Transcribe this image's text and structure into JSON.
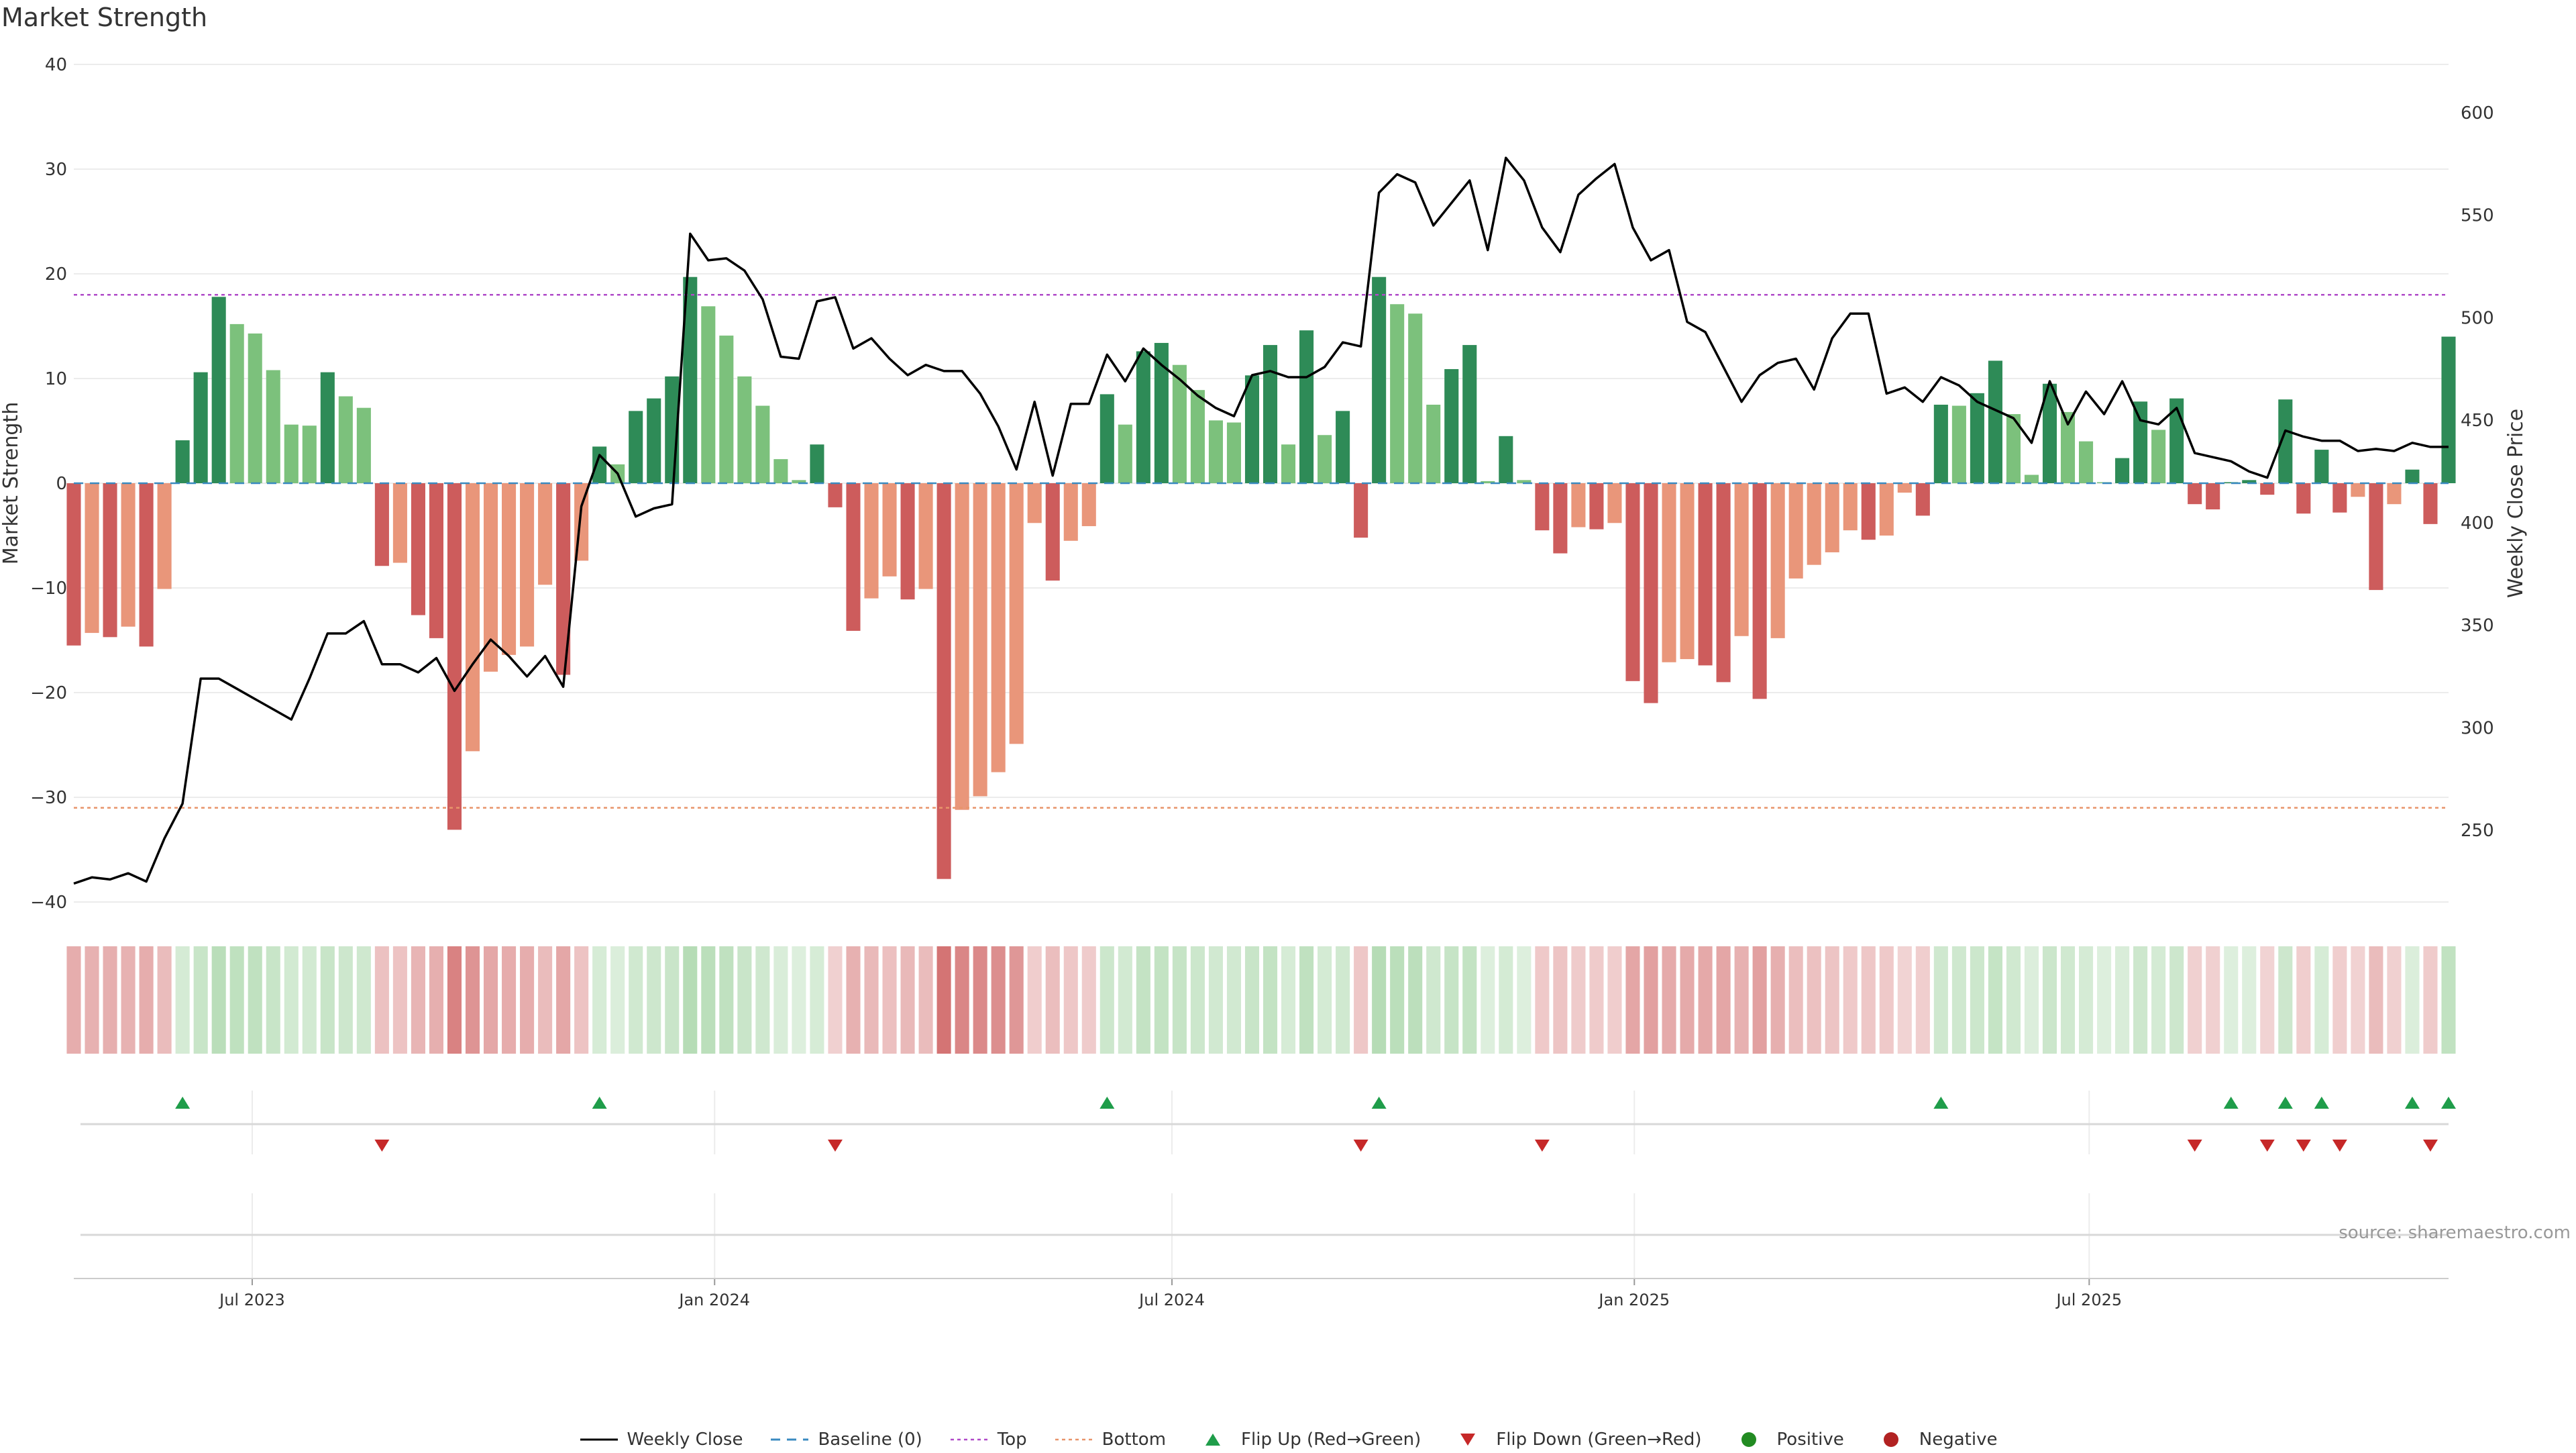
{
  "title": "Market Strength",
  "source": "source: sharemaestro.com",
  "colors": {
    "pos_strong": "#2e8b57",
    "pos_light": "#7cc17c",
    "neg_strong": "#cd5c5c",
    "neg_light": "#e9967a",
    "line": "#000000",
    "top": "#b04ac8",
    "bottom": "#e8946a",
    "baseline": "#3a8ac0",
    "flip_up": "#1f9d4a",
    "flip_down": "#c62828",
    "positive": "#228b22",
    "negative": "#b22222"
  },
  "legend": [
    {
      "key": "line",
      "label": "Weekly Close"
    },
    {
      "key": "baseline",
      "label": "Baseline (0)"
    },
    {
      "key": "top",
      "label": "Top"
    },
    {
      "key": "bottom",
      "label": "Bottom"
    },
    {
      "key": "flip_up",
      "label": "Flip Up (Red→Green)"
    },
    {
      "key": "flip_down",
      "label": "Flip Down (Green→Red)"
    },
    {
      "key": "positive",
      "label": "Positive"
    },
    {
      "key": "negative",
      "label": "Negative"
    }
  ],
  "chart_data": {
    "type": "bar",
    "title": "Market Strength",
    "ylabel": "Market Strength",
    "y2label": "Weekly Close Price",
    "ylim": [
      -40,
      40
    ],
    "y2lim": [
      200,
      620
    ],
    "yticks": [
      -40,
      -30,
      -20,
      -10,
      0,
      10,
      20,
      30,
      40
    ],
    "y2ticks": [
      250,
      300,
      350,
      400,
      450,
      500,
      550,
      600
    ],
    "top_level": 18,
    "bottom_level": -31,
    "x_start": "2023-04-21",
    "x_end": "2025-11-21",
    "xticks": [
      {
        "date": "2023-07-01",
        "label": "Jul 2023"
      },
      {
        "date": "2024-01-01",
        "label": "Jan 2024"
      },
      {
        "date": "2024-07-01",
        "label": "Jul 2024"
      },
      {
        "date": "2025-01-01",
        "label": "Jan 2025"
      },
      {
        "date": "2025-07-01",
        "label": "Jul 2025"
      }
    ],
    "strength": [
      -15.5,
      -14.3,
      -14.7,
      -13.7,
      -15.6,
      -10.1,
      4.1,
      10.6,
      17.8,
      15.2,
      14.3,
      10.8,
      5.6,
      5.5,
      10.6,
      8.3,
      7.2,
      -7.9,
      -7.6,
      -12.6,
      -14.8,
      -33.1,
      -25.6,
      -18.0,
      -16.4,
      -15.6,
      -9.7,
      -18.3,
      -7.4,
      3.5,
      1.8,
      6.9,
      8.1,
      10.2,
      19.7,
      16.9,
      14.1,
      10.2,
      7.4,
      2.3,
      0.3,
      3.7,
      -2.3,
      -14.1,
      -11.0,
      -8.9,
      -11.1,
      -10.1,
      -37.8,
      -31.2,
      -29.9,
      -27.6,
      -24.9,
      -3.8,
      -9.3,
      -5.5,
      -4.1,
      8.5,
      5.6,
      12.6,
      13.4,
      11.3,
      8.9,
      6.0,
      5.8,
      10.3,
      13.2,
      3.7,
      14.6,
      4.6,
      6.9,
      -5.2,
      19.7,
      17.1,
      16.2,
      7.5,
      10.9,
      13.2,
      0.2,
      4.5,
      0.3,
      -4.5,
      -6.7,
      -4.2,
      -4.4,
      -3.8,
      -18.9,
      -21.0,
      -17.1,
      -16.8,
      -17.4,
      -19.0,
      -14.6,
      -20.6,
      -14.8,
      -9.1,
      -7.8,
      -6.6,
      -4.5,
      -5.4,
      -5.0,
      -0.9,
      -3.1,
      7.5,
      7.4,
      8.6,
      11.7,
      6.6,
      0.8,
      9.5,
      6.8,
      4.0,
      0.1,
      2.4,
      7.8,
      5.1,
      8.1,
      -2.0,
      -2.5,
      0.1,
      0.3,
      -1.1,
      8.0,
      -2.9,
      3.2,
      -2.8,
      -1.3,
      -10.2,
      -2.0,
      1.3,
      -3.9,
      14.0
    ],
    "close": [
      224,
      227,
      226,
      229,
      225,
      246,
      263,
      324,
      324,
      319,
      314,
      309,
      304,
      324,
      346,
      346,
      352,
      331,
      331,
      327,
      334,
      318,
      331,
      343,
      335,
      325,
      335,
      320,
      408,
      433,
      424,
      403,
      407,
      409,
      541,
      528,
      529,
      523,
      509,
      481,
      480,
      508,
      510,
      485,
      490,
      480,
      472,
      477,
      474,
      474,
      463,
      447,
      426,
      459,
      423,
      458,
      458,
      482,
      469,
      485,
      477,
      470,
      462,
      456,
      452,
      472,
      474,
      471,
      471,
      476,
      488,
      486,
      561,
      570,
      566,
      545,
      556,
      567,
      533,
      578,
      567,
      544,
      532,
      560,
      568,
      575,
      544,
      528,
      533,
      498,
      493,
      476,
      459,
      472,
      478,
      480,
      465,
      490,
      502,
      502,
      463,
      466,
      459,
      471,
      467,
      459,
      455,
      451,
      439,
      469,
      448,
      464,
      453,
      469,
      450,
      448,
      456,
      434,
      432,
      430,
      425,
      422,
      445,
      442,
      440,
      440,
      435,
      436,
      435,
      439,
      437,
      437
    ]
  }
}
